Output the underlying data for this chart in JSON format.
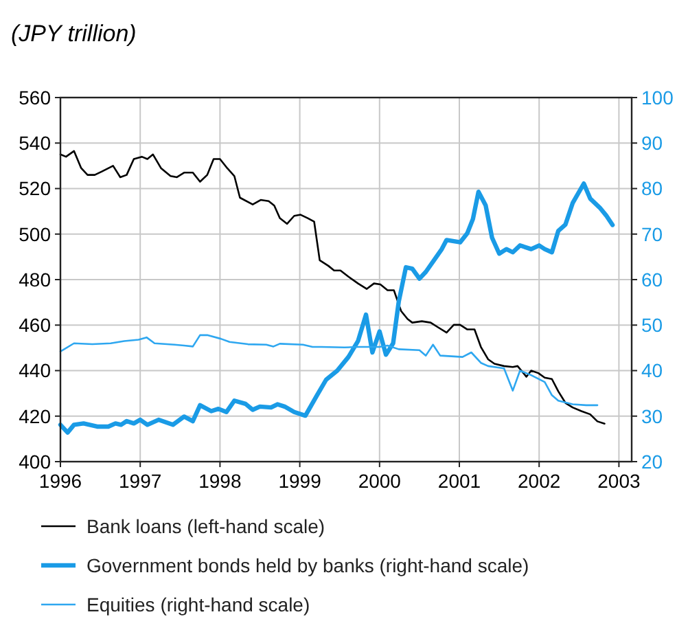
{
  "chart_data": {
    "type": "line",
    "title": "(JPY trillion)",
    "xlim": [
      1996,
      2003.16
    ],
    "xticks": [
      1996,
      1997,
      1998,
      1999,
      2000,
      2001,
      2002,
      2003
    ],
    "ylim": [
      400,
      560
    ],
    "yticks": [
      400,
      420,
      440,
      460,
      480,
      500,
      520,
      540,
      560
    ],
    "y2lim": [
      20,
      100
    ],
    "y2ticks": [
      20,
      30,
      40,
      50,
      60,
      70,
      80,
      90,
      100
    ],
    "grid": true,
    "legend": "bottom",
    "line_style": "solid",
    "marker": "none",
    "series": [
      {
        "name": "Bank loans (left-hand scale)",
        "color": "#000000",
        "x": [
          1996.0,
          1996.07,
          1996.17,
          1996.26,
          1996.34,
          1996.43,
          1996.52,
          1996.66,
          1996.75,
          1996.83,
          1996.92,
          1997.02,
          1997.09,
          1997.16,
          1997.26,
          1997.38,
          1997.46,
          1997.55,
          1997.66,
          1997.75,
          1997.84,
          1997.92,
          1998.0,
          1998.09,
          1998.18,
          1998.25,
          1998.41,
          1998.51,
          1998.61,
          1998.68,
          1998.75,
          1998.84,
          1998.93,
          1999.01,
          1999.1,
          1999.18,
          1999.25,
          1999.36,
          1999.43,
          1999.51,
          1999.61,
          1999.73,
          1999.84,
          1999.93,
          2000.01,
          2000.1,
          2000.18,
          2000.27,
          2000.35,
          2000.41,
          2000.53,
          2000.64,
          2000.73,
          2000.84,
          2000.93,
          2001.01,
          2001.1,
          2001.19,
          2001.27,
          2001.36,
          2001.44,
          2001.56,
          2001.67,
          2001.73,
          2001.84,
          2001.9,
          2001.99,
          2002.07,
          2002.16,
          2002.24,
          2002.33,
          2002.42,
          2002.53,
          2002.64,
          2002.73,
          2002.82
        ],
        "values": [
          535,
          534,
          536.5,
          529,
          526,
          526,
          527.5,
          530,
          525,
          526,
          533,
          534,
          533,
          535,
          529,
          525.5,
          525,
          527,
          527,
          523,
          526,
          533,
          533,
          529,
          525.5,
          516,
          513,
          515,
          514.5,
          512.5,
          507,
          504.5,
          508,
          508.5,
          507,
          505.5,
          488.5,
          486,
          484,
          484,
          481.3,
          478.3,
          475.9,
          478.3,
          477.9,
          475.3,
          475.3,
          466.2,
          462.7,
          461.1,
          461.7,
          461.1,
          459.1,
          456.7,
          460.1,
          460.1,
          458.1,
          458.1,
          450.4,
          445,
          443,
          442,
          441.6,
          442,
          437.3,
          440,
          438.9,
          436.9,
          436.3,
          430.9,
          425.8,
          423.8,
          422.2,
          420.8,
          417.7,
          416.7
        ]
      },
      {
        "name": "Government bonds held by banks (right-hand scale)",
        "color": "#1a9be6",
        "axis": "y2",
        "x": [
          1996.0,
          1996.09,
          1996.17,
          1996.29,
          1996.46,
          1996.6,
          1996.69,
          1996.76,
          1996.83,
          1996.92,
          1997.0,
          1997.09,
          1997.23,
          1997.41,
          1997.55,
          1997.66,
          1997.75,
          1997.89,
          1997.98,
          1998.08,
          1998.18,
          1998.32,
          1998.41,
          1998.5,
          1998.64,
          1998.72,
          1998.81,
          1998.93,
          1999.07,
          1999.21,
          1999.33,
          1999.47,
          1999.61,
          1999.73,
          1999.83,
          1999.91,
          2000.0,
          2000.08,
          2000.17,
          2000.24,
          2000.33,
          2000.41,
          2000.5,
          2000.58,
          2000.7,
          2000.78,
          2000.84,
          2001.01,
          2001.1,
          2001.17,
          2001.24,
          2001.33,
          2001.41,
          2001.5,
          2001.59,
          2001.67,
          2001.76,
          2001.9,
          2002.0,
          2002.07,
          2002.16,
          2002.24,
          2002.33,
          2002.42,
          2002.56,
          2002.64,
          2002.76,
          2002.84,
          2002.92
        ],
        "values": [
          28.1,
          26.4,
          28.1,
          28.4,
          27.7,
          27.7,
          28.4,
          28.1,
          28.9,
          28.4,
          29.2,
          28.1,
          29.2,
          28.1,
          29.9,
          28.9,
          32.4,
          31.1,
          31.6,
          30.9,
          33.4,
          32.7,
          31.4,
          32.1,
          31.9,
          32.6,
          32.1,
          30.9,
          30.1,
          34.4,
          38,
          40,
          43,
          46.5,
          52.3,
          44,
          48.6,
          43.5,
          46,
          55.1,
          62.7,
          62.4,
          60.2,
          61.7,
          64.7,
          66.7,
          68.7,
          68.2,
          70.2,
          73.3,
          79.3,
          76.3,
          69.2,
          65.7,
          66.7,
          66,
          67.5,
          66.7,
          67.5,
          66.7,
          66,
          70.7,
          72.1,
          76.8,
          81.1,
          77.8,
          75.8,
          74.1,
          72
        ]
      },
      {
        "name": "Equities (right-hand scale)",
        "color": "#2ea7f0",
        "axis": "y2",
        "x": [
          1996.0,
          1996.17,
          1996.4,
          1996.63,
          1996.8,
          1996.98,
          1997.08,
          1997.18,
          1997.43,
          1997.55,
          1997.66,
          1997.75,
          1997.84,
          1998.01,
          1998.12,
          1998.35,
          1998.58,
          1998.67,
          1998.75,
          1999.04,
          1999.16,
          1999.27,
          1999.56,
          1999.73,
          2000.0,
          2000.1,
          2000.24,
          2000.5,
          2000.58,
          2000.67,
          2000.76,
          2001.04,
          2001.15,
          2001.27,
          2001.36,
          2001.56,
          2001.67,
          2001.76,
          2001.9,
          2002.07,
          2002.16,
          2002.24,
          2002.42,
          2002.59,
          2002.73
        ],
        "values": [
          44.2,
          46,
          45.8,
          46,
          46.5,
          46.8,
          47.3,
          46,
          45.7,
          45.5,
          45.3,
          47.8,
          47.8,
          47,
          46.3,
          45.8,
          45.7,
          45.3,
          45.9,
          45.7,
          45.2,
          45.2,
          45.1,
          45.2,
          45.2,
          45.5,
          44.7,
          44.5,
          43.3,
          45.7,
          43.3,
          43,
          44,
          41.7,
          41,
          40.5,
          35.6,
          40,
          39,
          37.5,
          34.6,
          33.4,
          32.6,
          32.4,
          32.4
        ]
      }
    ]
  }
}
